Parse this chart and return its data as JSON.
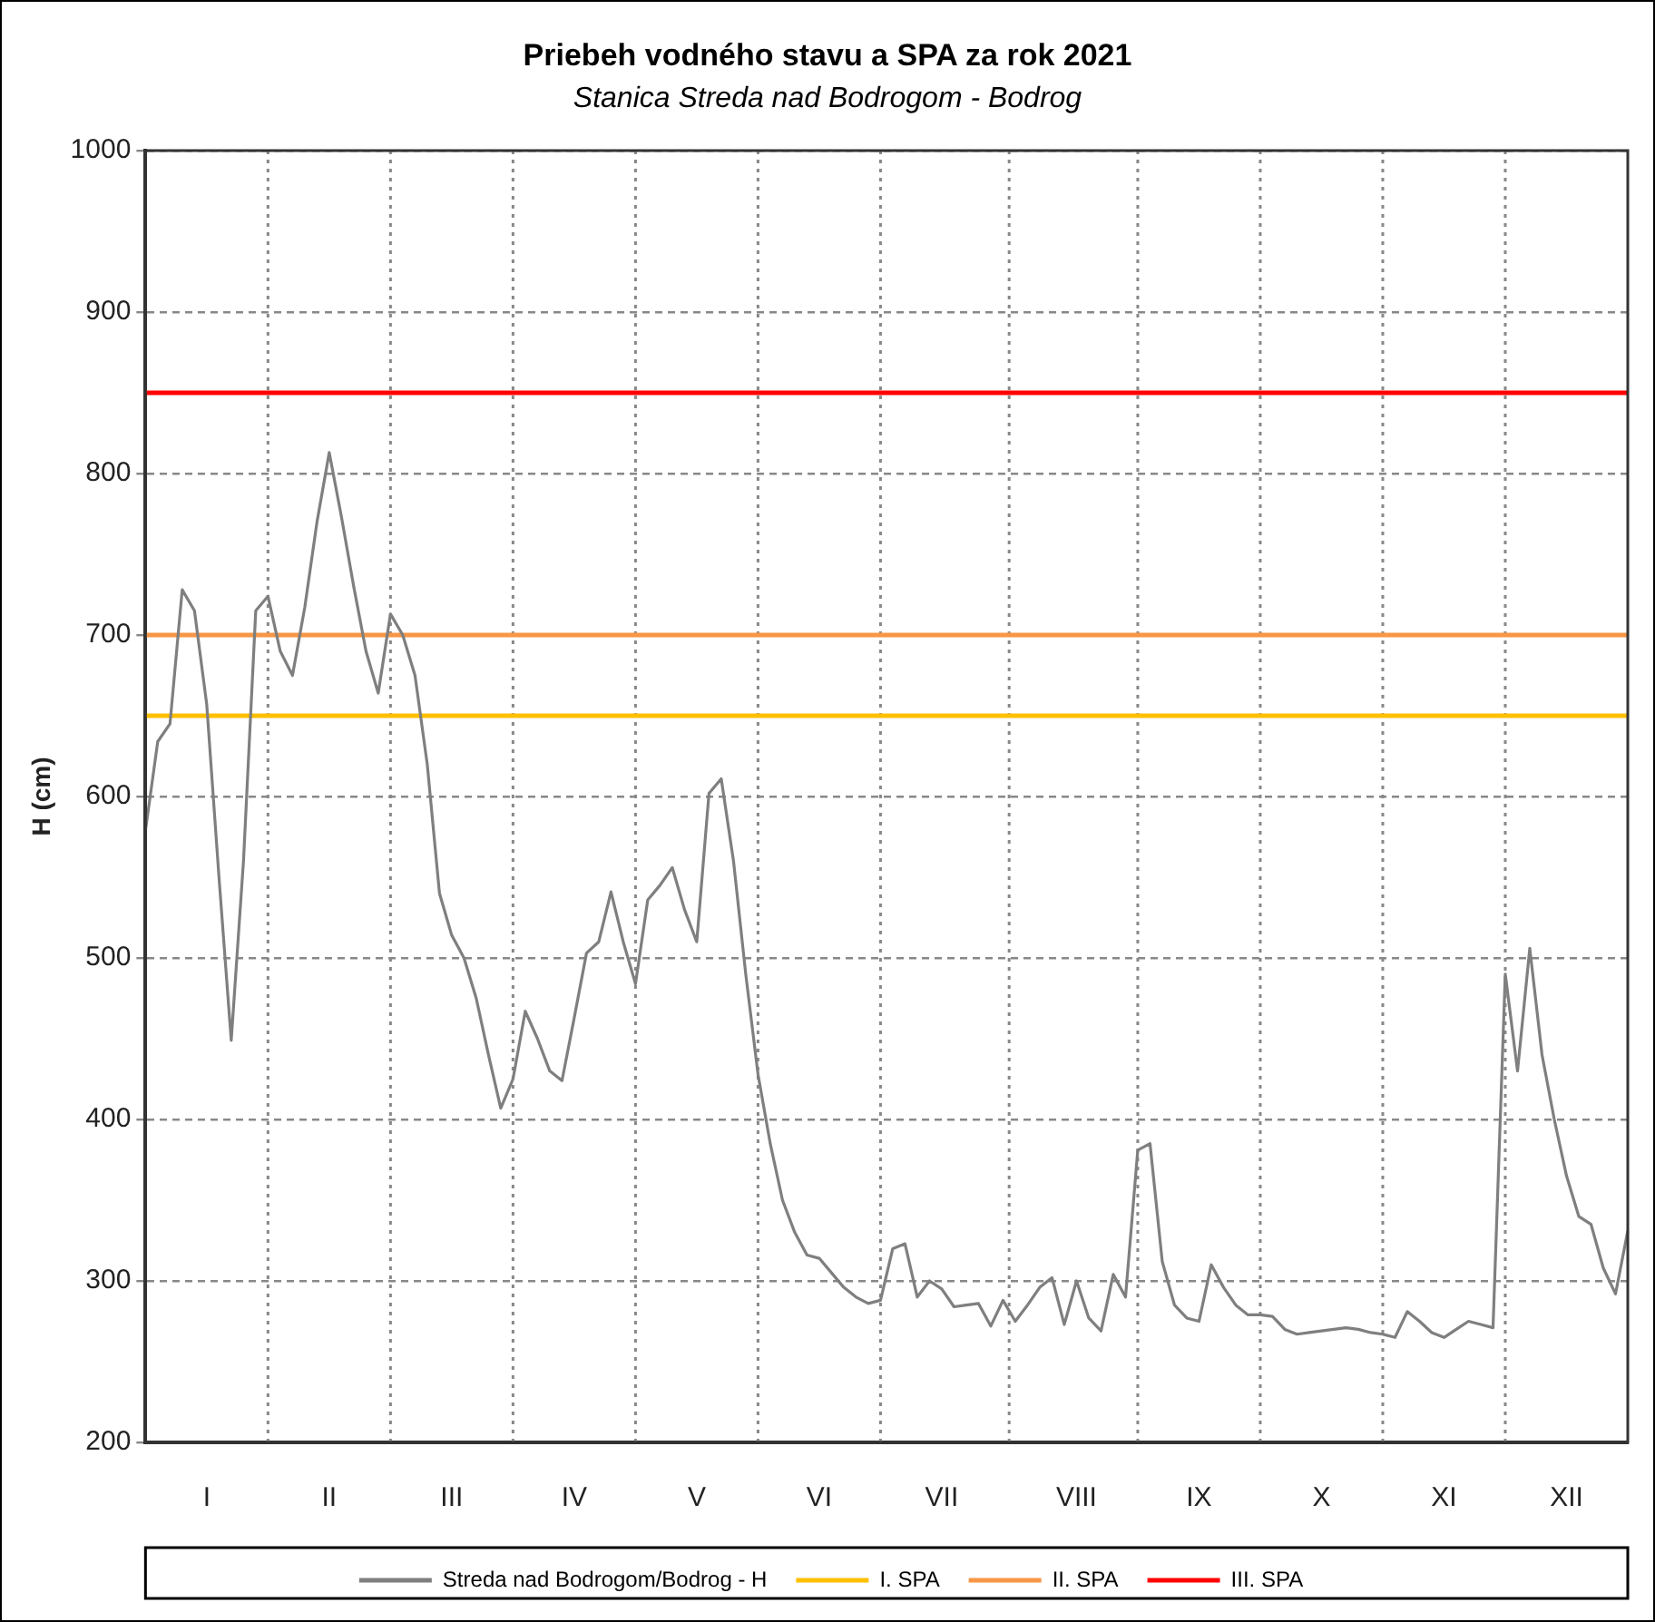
{
  "chart_data": {
    "type": "line",
    "title": "Priebeh vodného stavu a SPA za rok 2021",
    "subtitle": "Stanica Streda nad Bodrogom - Bodrog",
    "ylabel": "H (cm)",
    "categories": [
      null,
      null,
      null,
      null,
      null,
      "I",
      null,
      null,
      null,
      null,
      null,
      null,
      null,
      null,
      null,
      "II",
      null,
      null,
      null,
      null,
      null,
      null,
      null,
      null,
      null,
      "III",
      null,
      null,
      null,
      null,
      null,
      null,
      null,
      null,
      null,
      "IV",
      null,
      null,
      null,
      null,
      null,
      null,
      null,
      null,
      null,
      "V",
      null,
      null,
      null,
      null,
      null,
      null,
      null,
      null,
      null,
      "VI",
      null,
      null,
      null,
      null,
      null,
      null,
      null,
      null,
      null,
      "VII",
      null,
      null,
      null,
      null,
      null,
      null,
      null,
      null,
      null,
      null,
      "VIII",
      null,
      null,
      null,
      null,
      null,
      null,
      null,
      null,
      null,
      "IX",
      null,
      null,
      null,
      null,
      null,
      null,
      null,
      null,
      null,
      "X",
      null,
      null,
      null,
      null,
      null,
      null,
      null,
      null,
      null,
      "XI",
      null,
      null,
      null,
      null,
      null,
      null,
      null,
      null,
      null,
      "XII",
      null,
      null,
      null,
      null,
      null
    ],
    "ylim": [
      200,
      1000
    ],
    "yticks": [
      200,
      300,
      400,
      500,
      600,
      700,
      800,
      900,
      1000
    ],
    "grid": true,
    "legend": "bottom",
    "marker": "none",
    "line_style": "solid",
    "series": [
      {
        "name": "Streda nad Bodrogom/Bodrog - H",
        "color": "#7f7f7f",
        "values": [
          579,
          634,
          645,
          728,
          715,
          657,
          550,
          449,
          560,
          715,
          724,
          690,
          675,
          717,
          770,
          813,
          773,
          730,
          690,
          664,
          713,
          700,
          675,
          620,
          540,
          514,
          500,
          475,
          440,
          407,
          425,
          467,
          450,
          430,
          424,
          463,
          503,
          510,
          541,
          510,
          484,
          536,
          545,
          556,
          530,
          510,
          602,
          611,
          560,
          490,
          428,
          385,
          350,
          330,
          316,
          314,
          305,
          296,
          290,
          286,
          288,
          320,
          323,
          290,
          300,
          295,
          284,
          285,
          286,
          272,
          288,
          275,
          285,
          296,
          302,
          273,
          300,
          277,
          269,
          304,
          290,
          381,
          385,
          312,
          285,
          277,
          275,
          310,
          296,
          285,
          279,
          279,
          278,
          270,
          267,
          268,
          269,
          270,
          271,
          270,
          268,
          267,
          265,
          281,
          275,
          268,
          265,
          270,
          275,
          273,
          271,
          490,
          430,
          506,
          440,
          400,
          365,
          340,
          335,
          308,
          292,
          331
        ]
      }
    ],
    "ref_lines": [
      {
        "axis": "y",
        "value": 650,
        "label": "I. SPA",
        "color": "#ffc000"
      },
      {
        "axis": "y",
        "value": 700,
        "label": "II. SPA",
        "color": "#f79646"
      },
      {
        "axis": "y",
        "value": 850,
        "label": "III. SPA",
        "color": "#ff0000"
      }
    ]
  }
}
